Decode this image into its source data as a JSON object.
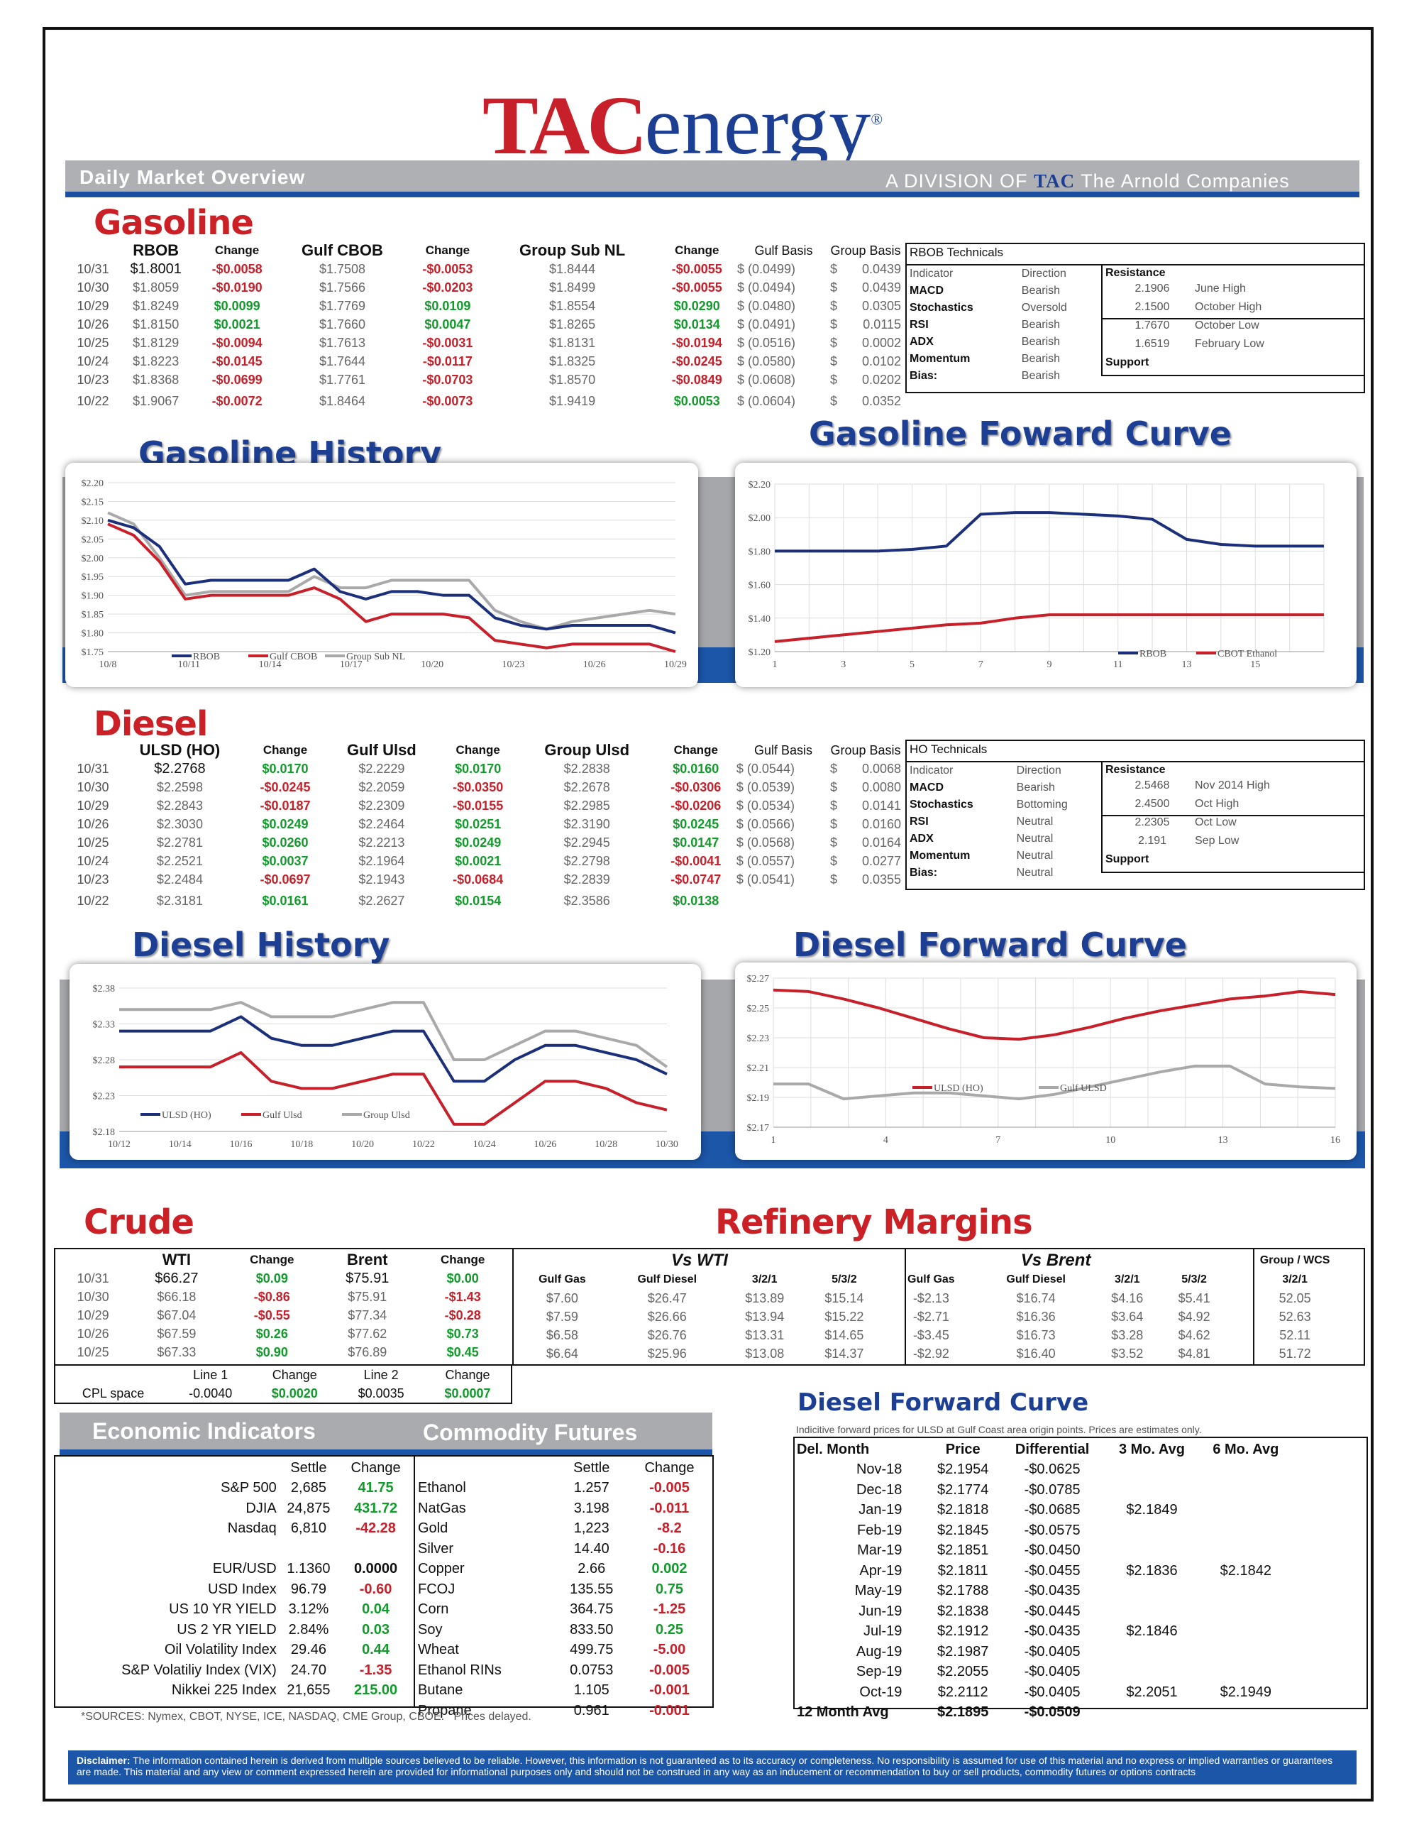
{
  "header": {
    "logo_tac": "TAC",
    "logo_energy": "energy",
    "logo_mark": "®",
    "daily": "Daily Market Overview",
    "division_prefix": "A DIVISION OF",
    "division_tac": "TAC",
    "division_suffix": "The Arnold Companies"
  },
  "gasoline": {
    "title": "Gasoline",
    "headers": [
      "RBOB",
      "Change",
      "Gulf CBOB",
      "Change",
      "Group Sub NL",
      "Change",
      "Gulf Basis",
      "Group Basis"
    ],
    "rows": [
      [
        "10/31",
        "$1.8001",
        "-$0.0058",
        "$1.7508",
        "-$0.0053",
        "$1.8444",
        "-$0.0055",
        "$ (0.0499)",
        "$",
        "0.0439"
      ],
      [
        "10/30",
        "$1.8059",
        "-$0.0190",
        "$1.7566",
        "-$0.0203",
        "$1.8499",
        "-$0.0055",
        "$ (0.0494)",
        "$",
        "0.0439"
      ],
      [
        "10/29",
        "$1.8249",
        "$0.0099",
        "$1.7769",
        "$0.0109",
        "$1.8554",
        "$0.0290",
        "$ (0.0480)",
        "$",
        "0.0305"
      ],
      [
        "10/26",
        "$1.8150",
        "$0.0021",
        "$1.7660",
        "$0.0047",
        "$1.8265",
        "$0.0134",
        "$ (0.0491)",
        "$",
        "0.0115"
      ],
      [
        "10/25",
        "$1.8129",
        "-$0.0094",
        "$1.7613",
        "-$0.0031",
        "$1.8131",
        "-$0.0194",
        "$ (0.0516)",
        "$",
        "0.0002"
      ],
      [
        "10/24",
        "$1.8223",
        "-$0.0145",
        "$1.7644",
        "-$0.0117",
        "$1.8325",
        "-$0.0245",
        "$ (0.0580)",
        "$",
        "0.0102"
      ],
      [
        "10/23",
        "$1.8368",
        "-$0.0699",
        "$1.7761",
        "-$0.0703",
        "$1.8570",
        "-$0.0849",
        "$ (0.0608)",
        "$",
        "0.0202"
      ],
      [
        "10/22",
        "$1.9067",
        "-$0.0072",
        "$1.8464",
        "-$0.0073",
        "$1.9419",
        "$0.0053",
        "$ (0.0604)",
        "$",
        "0.0352"
      ]
    ],
    "technicals": {
      "title": "RBOB Technicals",
      "col1": "Indicator",
      "col2": "Direction",
      "rows": [
        [
          "MACD",
          "Bearish"
        ],
        [
          "Stochastics",
          "Oversold"
        ],
        [
          "RSI",
          "Bearish"
        ],
        [
          "ADX",
          "Bearish"
        ],
        [
          "Momentum",
          "Bearish"
        ],
        [
          "Bias:",
          "Bearish"
        ]
      ],
      "resistance": "Resistance",
      "support": "Support",
      "levels": [
        [
          "2.1906",
          "June High"
        ],
        [
          "2.1500",
          "October High"
        ],
        [
          "1.7670",
          "October Low"
        ],
        [
          "1.6519",
          "February Low"
        ]
      ]
    }
  },
  "gasoline_history": {
    "title": "Gasoline History"
  },
  "gasoline_forward": {
    "title": "Gasoline Foward Curve"
  },
  "diesel": {
    "title": "Diesel",
    "headers": [
      "ULSD (HO)",
      "Change",
      "Gulf Ulsd",
      "Change",
      "Group Ulsd",
      "Change",
      "Gulf Basis",
      "Group Basis"
    ],
    "rows": [
      [
        "10/31",
        "$2.2768",
        "$0.0170",
        "$2.2229",
        "$0.0170",
        "$2.2838",
        "$0.0160",
        "$ (0.0544)",
        "$",
        "0.0068"
      ],
      [
        "10/30",
        "$2.2598",
        "-$0.0245",
        "$2.2059",
        "-$0.0350",
        "$2.2678",
        "-$0.0306",
        "$ (0.0539)",
        "$",
        "0.0080"
      ],
      [
        "10/29",
        "$2.2843",
        "-$0.0187",
        "$2.2309",
        "-$0.0155",
        "$2.2985",
        "-$0.0206",
        "$ (0.0534)",
        "$",
        "0.0141"
      ],
      [
        "10/26",
        "$2.3030",
        "$0.0249",
        "$2.2464",
        "$0.0251",
        "$2.3190",
        "$0.0245",
        "$ (0.0566)",
        "$",
        "0.0160"
      ],
      [
        "10/25",
        "$2.2781",
        "$0.0260",
        "$2.2213",
        "$0.0249",
        "$2.2945",
        "$0.0147",
        "$ (0.0568)",
        "$",
        "0.0164"
      ],
      [
        "10/24",
        "$2.2521",
        "$0.0037",
        "$2.1964",
        "$0.0021",
        "$2.2798",
        "-$0.0041",
        "$ (0.0557)",
        "$",
        "0.0277"
      ],
      [
        "10/23",
        "$2.2484",
        "-$0.0697",
        "$2.1943",
        "-$0.0684",
        "$2.2839",
        "-$0.0747",
        "$ (0.0541)",
        "$",
        "0.0355"
      ],
      [
        "10/22",
        "$2.3181",
        "$0.0161",
        "$2.2627",
        "$0.0154",
        "$2.3586",
        "$0.0138",
        "",
        "",
        ""
      ]
    ],
    "technicals": {
      "title": "HO Technicals",
      "col1": "Indicator",
      "col2": "Direction",
      "rows": [
        [
          "MACD",
          "Bearish"
        ],
        [
          "Stochastics",
          "Bottoming"
        ],
        [
          "RSI",
          "Neutral"
        ],
        [
          "ADX",
          "Neutral"
        ],
        [
          "Momentum",
          "Neutral"
        ],
        [
          "Bias:",
          "Neutral"
        ]
      ],
      "resistance": "Resistance",
      "support": "Support",
      "levels": [
        [
          "2.5468",
          "Nov 2014 High"
        ],
        [
          "2.4500",
          "Oct High"
        ],
        [
          "2.2305",
          "Oct Low"
        ],
        [
          "2.191",
          "Sep Low"
        ]
      ]
    }
  },
  "diesel_history": {
    "title": "Diesel History"
  },
  "diesel_forward": {
    "title": "Diesel Forward Curve"
  },
  "chart_data": [
    {
      "type": "line",
      "id": "gas-history",
      "ylim": [
        1.75,
        2.2
      ],
      "yticks": [
        "$2.20",
        "$2.15",
        "$2.10",
        "$2.05",
        "$2.00",
        "$1.95",
        "$1.90",
        "$1.85",
        "$1.80",
        "$1.75"
      ],
      "xticks": [
        "10/8",
        "10/11",
        "10/14",
        "10/17",
        "10/20",
        "10/23",
        "10/26",
        "10/29"
      ],
      "series": [
        {
          "name": "RBOB",
          "color": "#1c2f7a",
          "values": [
            2.1,
            2.08,
            2.03,
            1.93,
            1.94,
            1.94,
            1.94,
            1.94,
            1.97,
            1.91,
            1.89,
            1.91,
            1.91,
            1.9,
            1.9,
            1.84,
            1.82,
            1.81,
            1.82,
            1.82,
            1.82,
            1.82,
            1.8
          ]
        },
        {
          "name": "Gulf CBOB",
          "color": "#c8202a",
          "values": [
            2.09,
            2.06,
            1.99,
            1.89,
            1.9,
            1.9,
            1.9,
            1.9,
            1.92,
            1.89,
            1.83,
            1.85,
            1.85,
            1.85,
            1.84,
            1.78,
            1.77,
            1.76,
            1.77,
            1.77,
            1.77,
            1.77,
            1.75
          ]
        },
        {
          "name": "Group Sub NL",
          "color": "#a9a9a9",
          "values": [
            2.12,
            2.09,
            2.0,
            1.9,
            1.91,
            1.91,
            1.91,
            1.91,
            1.95,
            1.92,
            1.92,
            1.94,
            1.94,
            1.94,
            1.94,
            1.86,
            1.83,
            1.81,
            1.83,
            1.84,
            1.85,
            1.86,
            1.85
          ]
        }
      ]
    },
    {
      "type": "line",
      "id": "gas-forward",
      "ylim": [
        1.2,
        2.2
      ],
      "yticks": [
        "$2.20",
        "$2.00",
        "$1.80",
        "$1.60",
        "$1.40",
        "$1.20"
      ],
      "xticks": [
        "1",
        "3",
        "5",
        "7",
        "9",
        "11",
        "13",
        "15"
      ],
      "series": [
        {
          "name": "RBOB",
          "color": "#1c2f7a",
          "values": [
            1.8,
            1.8,
            1.8,
            1.8,
            1.81,
            1.83,
            2.02,
            2.03,
            2.03,
            2.02,
            2.01,
            1.99,
            1.87,
            1.84,
            1.83,
            1.83,
            1.83
          ]
        },
        {
          "name": "CBOT Ethanol",
          "color": "#c8202a",
          "values": [
            1.26,
            1.28,
            1.3,
            1.32,
            1.34,
            1.36,
            1.37,
            1.4,
            1.42,
            1.42,
            1.42,
            1.42,
            1.42,
            1.42,
            1.42,
            1.42,
            1.42
          ]
        }
      ]
    },
    {
      "type": "line",
      "id": "diesel-history",
      "ylim": [
        2.18,
        2.38
      ],
      "yticks": [
        "$2.38",
        "$2.33",
        "$2.28",
        "$2.23",
        "$2.18"
      ],
      "xticks": [
        "10/12",
        "10/14",
        "10/16",
        "10/18",
        "10/20",
        "10/22",
        "10/24",
        "10/26",
        "10/28",
        "10/30"
      ],
      "series": [
        {
          "name": "ULSD (HO)",
          "color": "#1c2f7a",
          "values": [
            2.32,
            2.32,
            2.32,
            2.32,
            2.34,
            2.31,
            2.3,
            2.3,
            2.31,
            2.32,
            2.32,
            2.25,
            2.25,
            2.28,
            2.3,
            2.3,
            2.29,
            2.28,
            2.26
          ]
        },
        {
          "name": "Gulf Ulsd",
          "color": "#c8202a",
          "values": [
            2.27,
            2.27,
            2.27,
            2.27,
            2.29,
            2.25,
            2.24,
            2.24,
            2.25,
            2.26,
            2.26,
            2.19,
            2.19,
            2.22,
            2.25,
            2.25,
            2.24,
            2.22,
            2.21
          ]
        },
        {
          "name": "Group Ulsd",
          "color": "#a9a9a9",
          "values": [
            2.35,
            2.35,
            2.35,
            2.35,
            2.36,
            2.34,
            2.34,
            2.34,
            2.35,
            2.36,
            2.36,
            2.28,
            2.28,
            2.3,
            2.32,
            2.32,
            2.31,
            2.3,
            2.27
          ]
        }
      ]
    },
    {
      "type": "line",
      "id": "diesel-forward",
      "ylim": [
        2.17,
        2.27
      ],
      "yticks": [
        "$2.27",
        "$2.25",
        "$2.23",
        "$2.21",
        "$2.19",
        "$2.17"
      ],
      "xticks": [
        "1",
        "4",
        "7",
        "10",
        "13",
        "16"
      ],
      "series": [
        {
          "name": "ULSD (HO)",
          "color": "#c8202a",
          "values": [
            2.262,
            2.261,
            2.256,
            2.25,
            2.243,
            2.236,
            2.23,
            2.229,
            2.232,
            2.237,
            2.243,
            2.248,
            2.252,
            2.256,
            2.258,
            2.261,
            2.259
          ]
        },
        {
          "name": "Gulf ULSD",
          "color": "#a9a9a9",
          "values": [
            2.199,
            2.199,
            2.189,
            2.191,
            2.193,
            2.193,
            2.191,
            2.189,
            2.192,
            2.197,
            2.202,
            2.207,
            2.211,
            2.211,
            2.199,
            2.197,
            2.196
          ]
        }
      ]
    }
  ],
  "crude": {
    "title": "Crude",
    "headers": [
      "WTI",
      "Change",
      "Brent",
      "Change"
    ],
    "rows": [
      [
        "10/31",
        "$66.27",
        "$0.09",
        "$75.91",
        "$0.00"
      ],
      [
        "10/30",
        "$66.18",
        "-$0.86",
        "$75.91",
        "-$1.43"
      ],
      [
        "10/29",
        "$67.04",
        "-$0.55",
        "$77.34",
        "-$0.28"
      ],
      [
        "10/26",
        "$67.59",
        "$0.26",
        "$77.62",
        "$0.73"
      ],
      [
        "10/25",
        "$67.33",
        "$0.90",
        "$76.89",
        "$0.45"
      ]
    ],
    "cpl_headers": [
      "Line 1",
      "Change",
      "Line 2",
      "Change"
    ],
    "cpl_row": [
      "CPL space",
      "-0.0040",
      "$0.0020",
      "$0.0035",
      "$0.0007"
    ]
  },
  "refinery": {
    "title": "Refinery Margins",
    "vs_wti": "Vs WTI",
    "vs_brent": "Vs Brent",
    "group_wcs": "Group / WCS",
    "sub_headers": [
      "Gulf Gas",
      "Gulf Diesel",
      "3/2/1",
      "5/3/2",
      "Gulf Gas",
      "Gulf Diesel",
      "3/2/1",
      "5/3/2",
      "3/2/1"
    ],
    "rows": [
      [
        "$7.60",
        "$26.47",
        "$13.89",
        "$15.14",
        "-$2.13",
        "$16.74",
        "$4.16",
        "$5.41",
        "52.05"
      ],
      [
        "$7.59",
        "$26.66",
        "$13.94",
        "$15.22",
        "-$2.71",
        "$16.36",
        "$3.64",
        "$4.92",
        "52.63"
      ],
      [
        "$6.58",
        "$26.76",
        "$13.31",
        "$14.65",
        "-$3.45",
        "$16.73",
        "$3.28",
        "$4.62",
        "52.11"
      ],
      [
        "$6.64",
        "$25.96",
        "$13.08",
        "$14.37",
        "-$2.92",
        "$16.40",
        "$3.52",
        "$4.81",
        "51.72"
      ]
    ]
  },
  "economic": {
    "title": "Economic Indicators",
    "headers": [
      "Settle",
      "Change"
    ],
    "rows": [
      [
        "S&P 500",
        "2,685",
        "41.75"
      ],
      [
        "DJIA",
        "24,875",
        "431.72"
      ],
      [
        "Nasdaq",
        "6,810",
        "-42.28"
      ],
      [
        "",
        "",
        ""
      ],
      [
        "EUR/USD",
        "1.1360",
        "0.0000"
      ],
      [
        "USD Index",
        "96.79",
        "-0.60"
      ],
      [
        "US 10 YR YIELD",
        "3.12%",
        "0.04"
      ],
      [
        "US 2 YR YIELD",
        "2.84%",
        "0.03"
      ],
      [
        "Oil Volatility Index",
        "29.46",
        "0.44"
      ],
      [
        "S&P Volatiliy Index (VIX)",
        "24.70",
        "-1.35"
      ],
      [
        "Nikkei 225 Index",
        "21,655",
        "215.00"
      ]
    ]
  },
  "commodity": {
    "title": "Commodity Futures",
    "headers": [
      "Settle",
      "Change"
    ],
    "rows": [
      [
        "Ethanol",
        "1.257",
        "-0.005"
      ],
      [
        "NatGas",
        "3.198",
        "-0.011"
      ],
      [
        "Gold",
        "1,223",
        "-8.2"
      ],
      [
        "Silver",
        "14.40",
        "-0.16"
      ],
      [
        "Copper",
        "2.66",
        "0.002"
      ],
      [
        "FCOJ",
        "135.55",
        "0.75"
      ],
      [
        "Corn",
        "364.75",
        "-1.25"
      ],
      [
        "Soy",
        "833.50",
        "0.25"
      ],
      [
        "Wheat",
        "499.75",
        "-5.00"
      ],
      [
        "Ethanol RINs",
        "0.0753",
        "-0.005"
      ],
      [
        "Butane",
        "1.105",
        "-0.001"
      ],
      [
        "Propane",
        "0.961",
        "-0.001"
      ]
    ]
  },
  "sources": "*SOURCES: Nymex, CBOT, NYSE, ICE, NASDAQ, CME Group, CBOE.   Prices delayed.",
  "diesel_fc_table": {
    "title": "Diesel Forward Curve",
    "note": "Indicitive forward prices for ULSD at Gulf Coast area origin points.  Prices are estimates only.",
    "headers": [
      "Del. Month",
      "Price",
      "Differential",
      "3 Mo. Avg",
      "6 Mo. Avg"
    ],
    "rows": [
      [
        "Nov-18",
        "$2.1954",
        "-$0.0625",
        "",
        ""
      ],
      [
        "Dec-18",
        "$2.1774",
        "-$0.0785",
        "",
        ""
      ],
      [
        "Jan-19",
        "$2.1818",
        "-$0.0685",
        "$2.1849",
        ""
      ],
      [
        "Feb-19",
        "$2.1845",
        "-$0.0575",
        "",
        ""
      ],
      [
        "Mar-19",
        "$2.1851",
        "-$0.0450",
        "",
        ""
      ],
      [
        "Apr-19",
        "$2.1811",
        "-$0.0455",
        "$2.1836",
        "$2.1842"
      ],
      [
        "May-19",
        "$2.1788",
        "-$0.0435",
        "",
        ""
      ],
      [
        "Jun-19",
        "$2.1838",
        "-$0.0445",
        "",
        ""
      ],
      [
        "Jul-19",
        "$2.1912",
        "-$0.0435",
        "$2.1846",
        ""
      ],
      [
        "Aug-19",
        "$2.1987",
        "-$0.0405",
        "",
        ""
      ],
      [
        "Sep-19",
        "$2.2055",
        "-$0.0405",
        "",
        ""
      ],
      [
        "Oct-19",
        "$2.2112",
        "-$0.0405",
        "$2.2051",
        "$2.1949"
      ]
    ],
    "avg_row": [
      "12 Month Avg",
      "$2.1895",
      "-$0.0509"
    ]
  },
  "disclaimer": {
    "label": "Disclaimer:",
    "text": " The information contained herein is derived from multiple sources believed to be reliable.  However, this information is not  guaranteed as to its accuracy or completeness. No responsibility is assumed for use of this material and no express or implied  warranties or guarantees are made. This material and any view or comment expressed herein are provided for informational purposes only and should not be construed in any way as an inducement or recommendation to buy or sell products, commodity futures or options contracts"
  }
}
